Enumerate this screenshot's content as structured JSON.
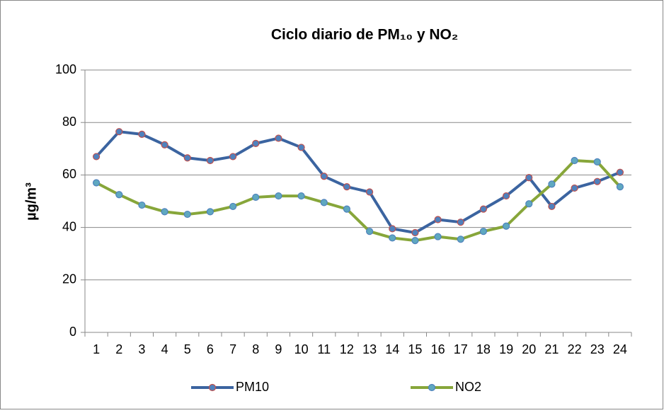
{
  "chart_data": {
    "type": "line",
    "title": "Ciclo diario de PM₁₀ y NO₂",
    "y_label": "µg/m³",
    "categories": [
      "1",
      "2",
      "3",
      "4",
      "5",
      "6",
      "7",
      "8",
      "9",
      "10",
      "11",
      "12",
      "13",
      "14",
      "15",
      "16",
      "17",
      "18",
      "19",
      "20",
      "21",
      "22",
      "23",
      "24"
    ],
    "series": [
      {
        "name": "PM10",
        "color": "#3b64a0",
        "marker_fill": "#4f81bd",
        "marker_stroke": "#c0504d",
        "values": [
          67,
          76.5,
          75.5,
          71.5,
          66.5,
          65.5,
          67,
          72,
          74,
          70.5,
          59.5,
          55.5,
          53.5,
          39.5,
          38,
          43,
          42,
          47,
          52,
          59,
          48,
          55,
          57.5,
          61
        ]
      },
      {
        "name": "NO2",
        "color": "#87a63a",
        "marker_fill": "#5fa8c0",
        "marker_stroke": "#4f81bd",
        "values": [
          57,
          52.5,
          48.5,
          46,
          45,
          46,
          48,
          51.5,
          52,
          52,
          49.5,
          47,
          38.5,
          36,
          35,
          36.5,
          35.5,
          38.5,
          40.5,
          49,
          56.5,
          65.5,
          65,
          55.5
        ]
      }
    ],
    "ylim": [
      0,
      100
    ],
    "yticks": [
      0,
      20,
      40,
      60,
      80,
      100
    ],
    "grid": true,
    "legend": "bottom"
  }
}
